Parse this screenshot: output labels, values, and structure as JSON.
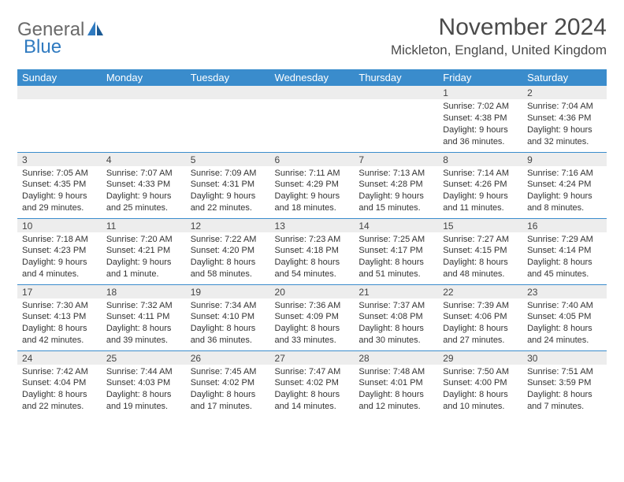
{
  "logo": {
    "part1": "General",
    "part2": "Blue"
  },
  "title": "November 2024",
  "location": "Mickleton, England, United Kingdom",
  "colors": {
    "header_bg": "#3a8ccc",
    "header_text": "#ffffff",
    "daynum_bg": "#ededed",
    "border": "#3a8ccc",
    "logo_gray": "#6a6a6a",
    "logo_blue": "#2f7ac0",
    "text": "#333333"
  },
  "weekdays": [
    "Sunday",
    "Monday",
    "Tuesday",
    "Wednesday",
    "Thursday",
    "Friday",
    "Saturday"
  ],
  "weeks": [
    [
      {
        "day": "",
        "sunrise": "",
        "sunset": "",
        "daylight": ""
      },
      {
        "day": "",
        "sunrise": "",
        "sunset": "",
        "daylight": ""
      },
      {
        "day": "",
        "sunrise": "",
        "sunset": "",
        "daylight": ""
      },
      {
        "day": "",
        "sunrise": "",
        "sunset": "",
        "daylight": ""
      },
      {
        "day": "",
        "sunrise": "",
        "sunset": "",
        "daylight": ""
      },
      {
        "day": "1",
        "sunrise": "Sunrise: 7:02 AM",
        "sunset": "Sunset: 4:38 PM",
        "daylight": "Daylight: 9 hours and 36 minutes."
      },
      {
        "day": "2",
        "sunrise": "Sunrise: 7:04 AM",
        "sunset": "Sunset: 4:36 PM",
        "daylight": "Daylight: 9 hours and 32 minutes."
      }
    ],
    [
      {
        "day": "3",
        "sunrise": "Sunrise: 7:05 AM",
        "sunset": "Sunset: 4:35 PM",
        "daylight": "Daylight: 9 hours and 29 minutes."
      },
      {
        "day": "4",
        "sunrise": "Sunrise: 7:07 AM",
        "sunset": "Sunset: 4:33 PM",
        "daylight": "Daylight: 9 hours and 25 minutes."
      },
      {
        "day": "5",
        "sunrise": "Sunrise: 7:09 AM",
        "sunset": "Sunset: 4:31 PM",
        "daylight": "Daylight: 9 hours and 22 minutes."
      },
      {
        "day": "6",
        "sunrise": "Sunrise: 7:11 AM",
        "sunset": "Sunset: 4:29 PM",
        "daylight": "Daylight: 9 hours and 18 minutes."
      },
      {
        "day": "7",
        "sunrise": "Sunrise: 7:13 AM",
        "sunset": "Sunset: 4:28 PM",
        "daylight": "Daylight: 9 hours and 15 minutes."
      },
      {
        "day": "8",
        "sunrise": "Sunrise: 7:14 AM",
        "sunset": "Sunset: 4:26 PM",
        "daylight": "Daylight: 9 hours and 11 minutes."
      },
      {
        "day": "9",
        "sunrise": "Sunrise: 7:16 AM",
        "sunset": "Sunset: 4:24 PM",
        "daylight": "Daylight: 9 hours and 8 minutes."
      }
    ],
    [
      {
        "day": "10",
        "sunrise": "Sunrise: 7:18 AM",
        "sunset": "Sunset: 4:23 PM",
        "daylight": "Daylight: 9 hours and 4 minutes."
      },
      {
        "day": "11",
        "sunrise": "Sunrise: 7:20 AM",
        "sunset": "Sunset: 4:21 PM",
        "daylight": "Daylight: 9 hours and 1 minute."
      },
      {
        "day": "12",
        "sunrise": "Sunrise: 7:22 AM",
        "sunset": "Sunset: 4:20 PM",
        "daylight": "Daylight: 8 hours and 58 minutes."
      },
      {
        "day": "13",
        "sunrise": "Sunrise: 7:23 AM",
        "sunset": "Sunset: 4:18 PM",
        "daylight": "Daylight: 8 hours and 54 minutes."
      },
      {
        "day": "14",
        "sunrise": "Sunrise: 7:25 AM",
        "sunset": "Sunset: 4:17 PM",
        "daylight": "Daylight: 8 hours and 51 minutes."
      },
      {
        "day": "15",
        "sunrise": "Sunrise: 7:27 AM",
        "sunset": "Sunset: 4:15 PM",
        "daylight": "Daylight: 8 hours and 48 minutes."
      },
      {
        "day": "16",
        "sunrise": "Sunrise: 7:29 AM",
        "sunset": "Sunset: 4:14 PM",
        "daylight": "Daylight: 8 hours and 45 minutes."
      }
    ],
    [
      {
        "day": "17",
        "sunrise": "Sunrise: 7:30 AM",
        "sunset": "Sunset: 4:13 PM",
        "daylight": "Daylight: 8 hours and 42 minutes."
      },
      {
        "day": "18",
        "sunrise": "Sunrise: 7:32 AM",
        "sunset": "Sunset: 4:11 PM",
        "daylight": "Daylight: 8 hours and 39 minutes."
      },
      {
        "day": "19",
        "sunrise": "Sunrise: 7:34 AM",
        "sunset": "Sunset: 4:10 PM",
        "daylight": "Daylight: 8 hours and 36 minutes."
      },
      {
        "day": "20",
        "sunrise": "Sunrise: 7:36 AM",
        "sunset": "Sunset: 4:09 PM",
        "daylight": "Daylight: 8 hours and 33 minutes."
      },
      {
        "day": "21",
        "sunrise": "Sunrise: 7:37 AM",
        "sunset": "Sunset: 4:08 PM",
        "daylight": "Daylight: 8 hours and 30 minutes."
      },
      {
        "day": "22",
        "sunrise": "Sunrise: 7:39 AM",
        "sunset": "Sunset: 4:06 PM",
        "daylight": "Daylight: 8 hours and 27 minutes."
      },
      {
        "day": "23",
        "sunrise": "Sunrise: 7:40 AM",
        "sunset": "Sunset: 4:05 PM",
        "daylight": "Daylight: 8 hours and 24 minutes."
      }
    ],
    [
      {
        "day": "24",
        "sunrise": "Sunrise: 7:42 AM",
        "sunset": "Sunset: 4:04 PM",
        "daylight": "Daylight: 8 hours and 22 minutes."
      },
      {
        "day": "25",
        "sunrise": "Sunrise: 7:44 AM",
        "sunset": "Sunset: 4:03 PM",
        "daylight": "Daylight: 8 hours and 19 minutes."
      },
      {
        "day": "26",
        "sunrise": "Sunrise: 7:45 AM",
        "sunset": "Sunset: 4:02 PM",
        "daylight": "Daylight: 8 hours and 17 minutes."
      },
      {
        "day": "27",
        "sunrise": "Sunrise: 7:47 AM",
        "sunset": "Sunset: 4:02 PM",
        "daylight": "Daylight: 8 hours and 14 minutes."
      },
      {
        "day": "28",
        "sunrise": "Sunrise: 7:48 AM",
        "sunset": "Sunset: 4:01 PM",
        "daylight": "Daylight: 8 hours and 12 minutes."
      },
      {
        "day": "29",
        "sunrise": "Sunrise: 7:50 AM",
        "sunset": "Sunset: 4:00 PM",
        "daylight": "Daylight: 8 hours and 10 minutes."
      },
      {
        "day": "30",
        "sunrise": "Sunrise: 7:51 AM",
        "sunset": "Sunset: 3:59 PM",
        "daylight": "Daylight: 8 hours and 7 minutes."
      }
    ]
  ]
}
